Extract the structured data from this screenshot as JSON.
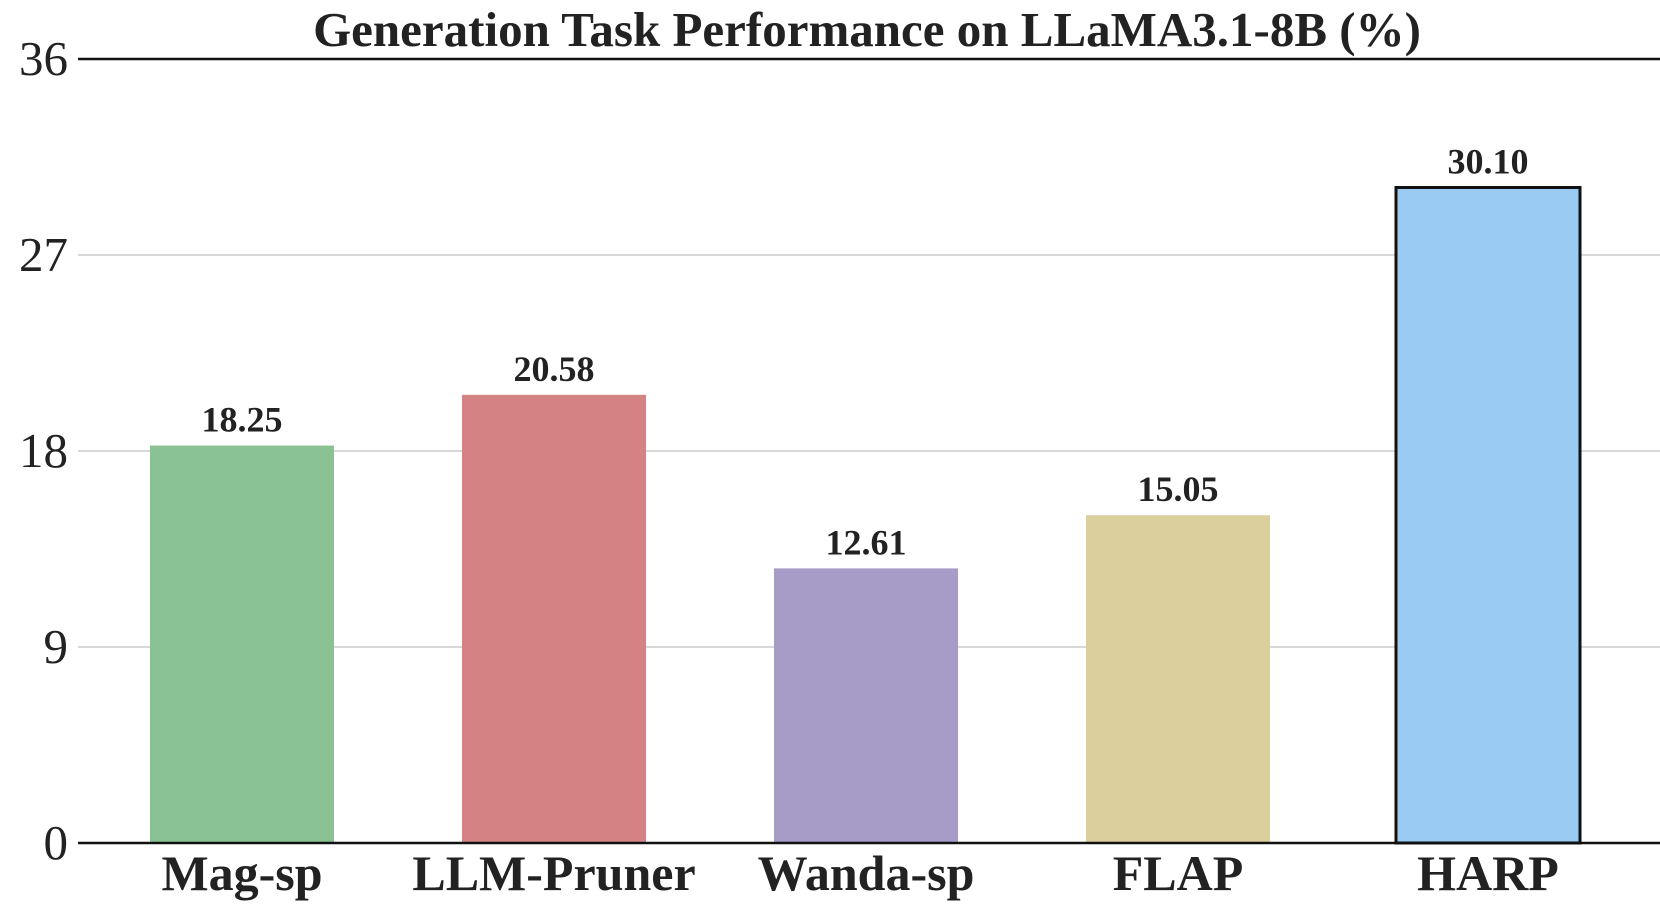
{
  "chart_data": {
    "type": "bar",
    "title": "Generation Task Performance on LLaMA3.1-8B (%)",
    "xlabel": "",
    "ylabel": "",
    "categories": [
      "Mag-sp",
      "LLM-Pruner",
      "Wanda-sp",
      "FLAP",
      "HARP"
    ],
    "values": [
      18.25,
      20.58,
      12.61,
      15.05,
      30.1
    ],
    "data_labels": [
      "18.25",
      "20.58",
      "12.61",
      "15.05",
      "30.10"
    ],
    "colors": [
      "#8ac293",
      "#d58284",
      "#a79cc8",
      "#dacf9d",
      "#9acbf2"
    ],
    "highlighted": [
      false,
      false,
      false,
      false,
      true
    ],
    "highlight_edge_color": "#111111",
    "ylim": [
      0,
      36
    ],
    "yticks": [
      0,
      9,
      18,
      27,
      36
    ],
    "ytick_labels": [
      "0",
      "9",
      "18",
      "27",
      "36"
    ],
    "grid": true,
    "legend": "none"
  }
}
